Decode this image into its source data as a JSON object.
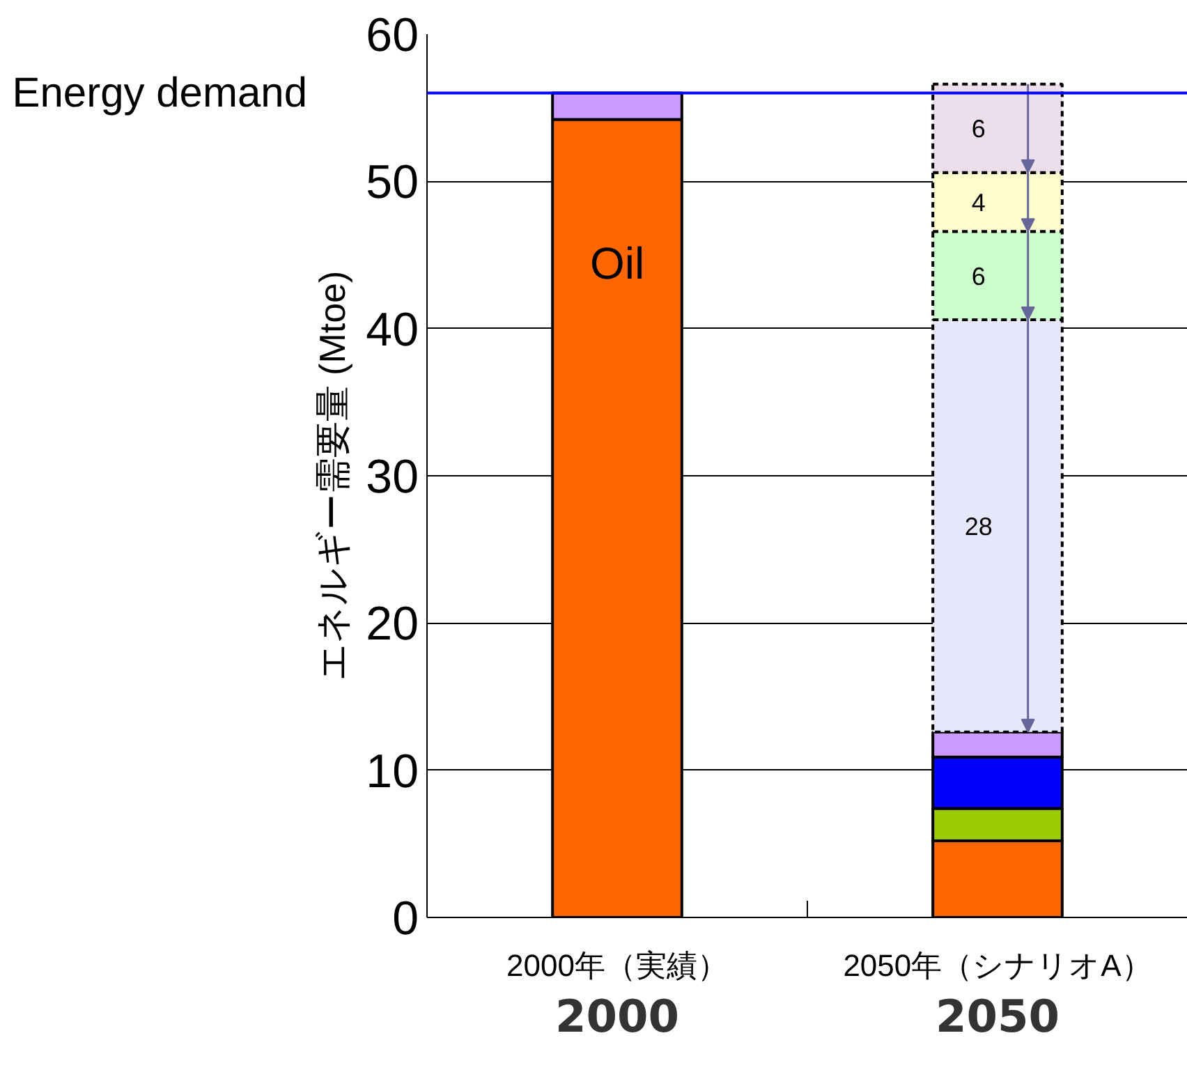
{
  "chart_data": {
    "type": "bar",
    "stacked": true,
    "categories": [
      "2000年（実績）",
      "2050年（シナリオA）"
    ],
    "ylabel": "エネルギー需要量 (Mtoe)",
    "ylim": [
      0,
      60
    ],
    "yticks": [
      0,
      10,
      20,
      30,
      40,
      50,
      60
    ],
    "grid": "y",
    "annotations": [
      "2000",
      "2050"
    ],
    "ref_lines": [
      {
        "axis": "y",
        "value": 56,
        "label": "Energy demand",
        "color": "#0000ff"
      }
    ],
    "series": [
      {
        "name": "Oil",
        "color": "#ff6600",
        "values": [
          54.2,
          5.2
        ]
      },
      {
        "color": "#99cc00",
        "values": [
          null,
          2.2
        ]
      },
      {
        "color": "#0000ff",
        "values": [
          null,
          3.5
        ]
      },
      {
        "color": "#cc99ff",
        "values": [
          1.8,
          1.7
        ]
      },
      {
        "color": "#e8e8fc",
        "values": [
          null,
          28
        ],
        "value_labels": [
          null,
          "28"
        ],
        "line_style": "dashed"
      },
      {
        "color": "#ccfccc",
        "values": [
          null,
          6
        ],
        "value_labels": [
          null,
          "6"
        ],
        "line_style": "dashed"
      },
      {
        "color": "#fcfccc",
        "values": [
          null,
          4
        ],
        "value_labels": [
          null,
          "4"
        ],
        "line_style": "dashed"
      },
      {
        "color": "#ecdfeb",
        "values": [
          null,
          6
        ],
        "value_labels": [
          null,
          "6"
        ],
        "line_style": "dashed"
      }
    ]
  }
}
